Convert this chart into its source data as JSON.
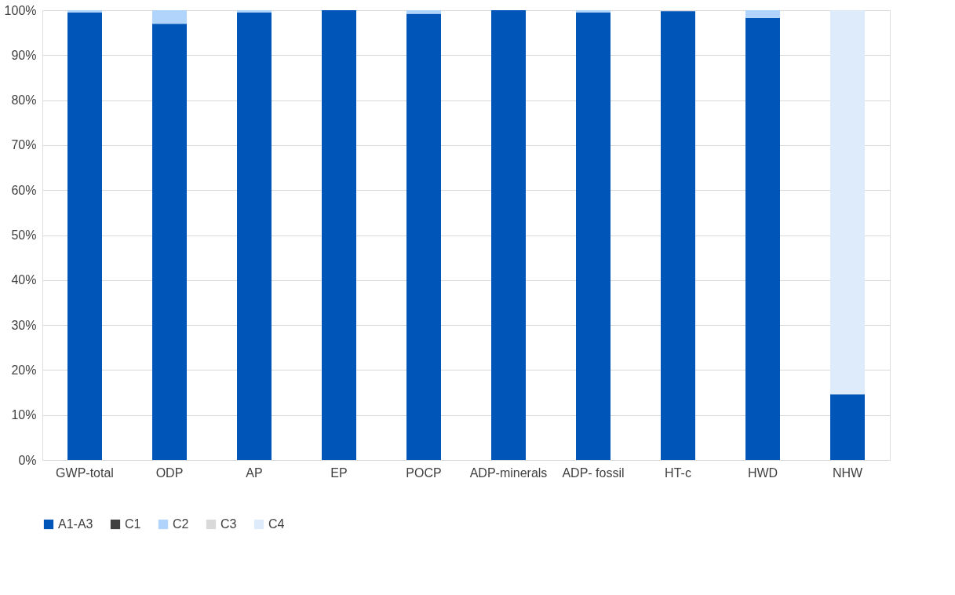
{
  "chart_data": {
    "type": "bar",
    "stacked": true,
    "categories": [
      "GWP-total",
      "ODP",
      "AP",
      "EP",
      "POCP",
      "ADP-minerals",
      "ADP- fossil",
      "HT-c",
      "HWD",
      "NHW"
    ],
    "series": [
      {
        "name": "A1-A3",
        "color": "#0055b8",
        "values": [
          99.5,
          97,
          99.5,
          100,
          99.2,
          100,
          99.5,
          99.8,
          98.3,
          14.6
        ]
      },
      {
        "name": "C1",
        "color": "#404040",
        "values": [
          0,
          0,
          0,
          0,
          0,
          0,
          0,
          0,
          0,
          0
        ]
      },
      {
        "name": "C2",
        "color": "#b0d4fb",
        "values": [
          0.5,
          3,
          0.5,
          0,
          0.8,
          0,
          0.5,
          null,
          1.7,
          0
        ]
      },
      {
        "name": "C3",
        "color": "#d9d9d9",
        "values": [
          0,
          0,
          0,
          0,
          0,
          0,
          0,
          0,
          0,
          0
        ]
      },
      {
        "name": "C4",
        "color": "#deebfb",
        "values": [
          0,
          0,
          0,
          0,
          0,
          0,
          0,
          0,
          0,
          85.4
        ]
      }
    ],
    "ylim": [
      0,
      100
    ],
    "yticks": [
      {
        "value": 0,
        "label": "0%"
      },
      {
        "value": 10,
        "label": "10%"
      },
      {
        "value": 20,
        "label": "20%"
      },
      {
        "value": 30,
        "label": "30%"
      },
      {
        "value": 40,
        "label": "40%"
      },
      {
        "value": 50,
        "label": "50%"
      },
      {
        "value": 60,
        "label": "60%"
      },
      {
        "value": 70,
        "label": "70%"
      },
      {
        "value": 80,
        "label": "80%"
      },
      {
        "value": 90,
        "label": "90%"
      },
      {
        "value": 100,
        "label": "100%"
      }
    ],
    "grid": "y",
    "legend": "bottom"
  }
}
